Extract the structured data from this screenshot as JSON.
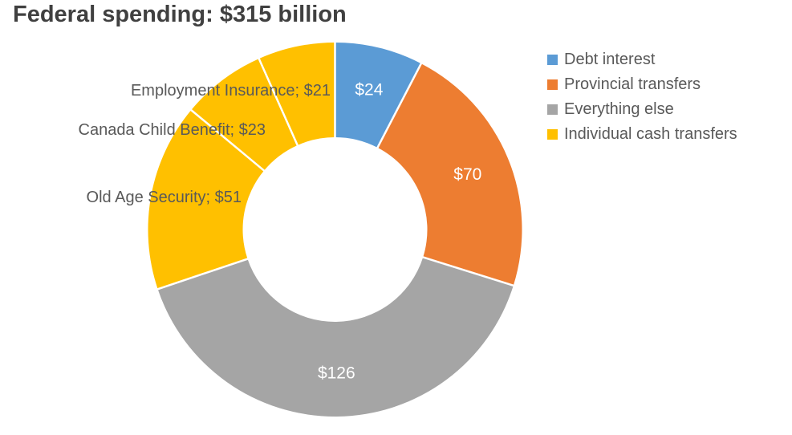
{
  "chart_data": {
    "type": "pie",
    "subtype": "donut",
    "title": "Federal spending: $315 billion",
    "total": 315,
    "value_prefix": "$",
    "start_angle_deg": 0,
    "direction": "clockwise",
    "segments": [
      {
        "id": "debt-interest",
        "name": "Debt interest",
        "value": 24,
        "color": "#5B9BD5",
        "label": "$24",
        "label_inside": true
      },
      {
        "id": "provincial-transfers",
        "name": "Provincial transfers",
        "value": 70,
        "color": "#ED7D31",
        "label": "$70",
        "label_inside": true
      },
      {
        "id": "everything-else",
        "name": "Everything else",
        "value": 126,
        "color": "#A5A5A5",
        "label": "$126",
        "label_inside": true
      },
      {
        "id": "old-age-security",
        "name": "Old Age Security",
        "value": 51,
        "color": "#FFC000",
        "label": "Old Age Security; $51",
        "label_inside": false,
        "group": "Individual cash transfers"
      },
      {
        "id": "canada-child-benefit",
        "name": "Canada Child Benefit",
        "value": 23,
        "color": "#FFC000",
        "label": "Canada Child Benefit; $23",
        "label_inside": false,
        "group": "Individual cash transfers"
      },
      {
        "id": "employment-insurance",
        "name": "Employment Insurance",
        "value": 21,
        "color": "#FFC000",
        "label": "Employment Insurance; $21",
        "label_inside": false,
        "group": "Individual cash transfers"
      }
    ],
    "legend": {
      "position": "right",
      "items": [
        {
          "label": "Debt interest",
          "color": "#5B9BD5"
        },
        {
          "label": "Provincial transfers",
          "color": "#ED7D31"
        },
        {
          "label": "Everything else",
          "color": "#A5A5A5"
        },
        {
          "label": "Individual cash transfers",
          "color": "#FFC000"
        }
      ]
    },
    "colors": {
      "title_text": "#404040",
      "callout_text": "#595959",
      "inside_value_text": "#FFFFFF",
      "segment_divider": "#FFFFFF",
      "background": "#FFFFFF"
    }
  }
}
